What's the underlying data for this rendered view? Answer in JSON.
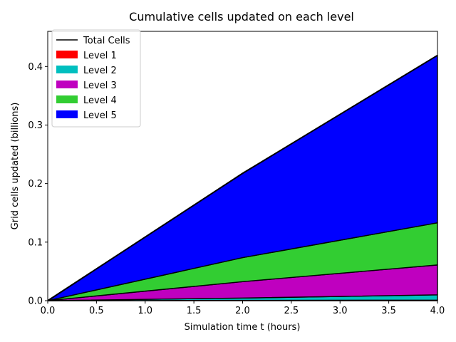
{
  "chart_data": {
    "type": "area",
    "title": "Cumulative cells updated on each level",
    "xlabel": "Simulation time t (hours)",
    "ylabel": "Grid cells updated (billions)",
    "xlim": [
      0.0,
      4.0
    ],
    "ylim": [
      0.0,
      0.46
    ],
    "x_ticks": [
      "0.0",
      "0.5",
      "1.0",
      "1.5",
      "2.0",
      "2.5",
      "3.0",
      "3.5",
      "4.0"
    ],
    "y_ticks": [
      "0.0",
      "0.1",
      "0.2",
      "0.3",
      "0.4"
    ],
    "x": [
      0.0,
      2.0,
      4.0
    ],
    "stacked": true,
    "legend_position": "top-left",
    "series": [
      {
        "name": "Level 1",
        "color": "#ff0000",
        "values": [
          0.0,
          0.0005,
          0.001
        ]
      },
      {
        "name": "Level 2",
        "color": "#00bfbf",
        "values": [
          0.0,
          0.004,
          0.009
        ]
      },
      {
        "name": "Level 3",
        "color": "#bf00bf",
        "values": [
          0.0,
          0.028,
          0.051
        ]
      },
      {
        "name": "Level 4",
        "color": "#32cd32",
        "values": [
          0.0,
          0.041,
          0.072
        ]
      },
      {
        "name": "Level 5",
        "color": "#0000ff",
        "values": [
          0.0,
          0.144,
          0.286
        ]
      }
    ],
    "total_line": {
      "name": "Total Cells",
      "color": "#000000"
    }
  }
}
